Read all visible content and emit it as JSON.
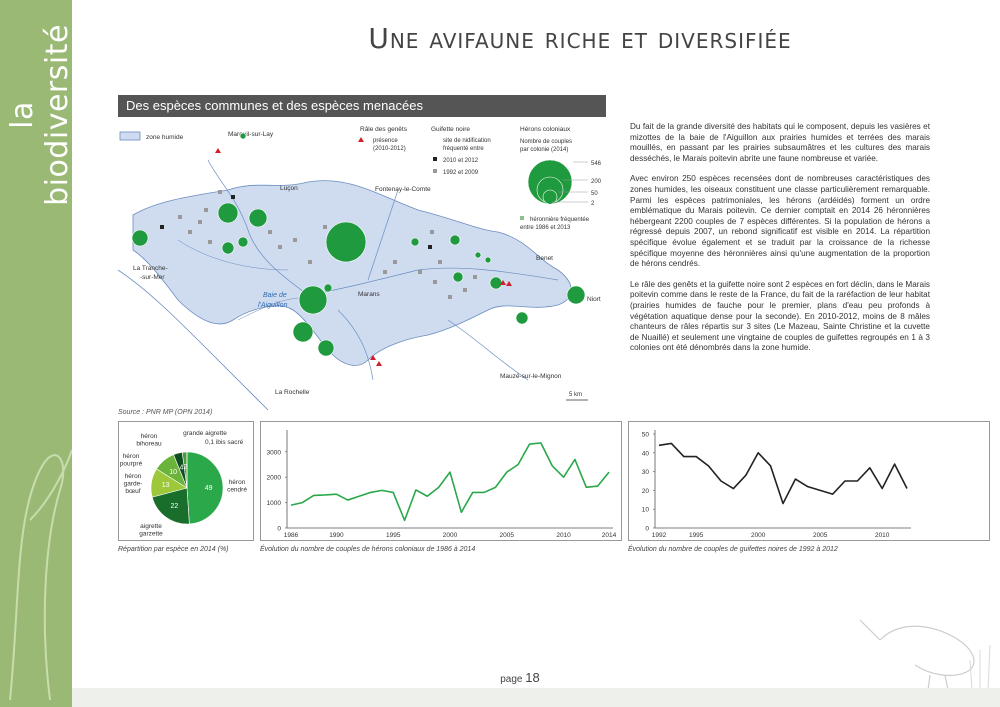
{
  "side_label": "la biodiversité",
  "title": "Une avifaune riche et diversifiée",
  "section_title": "Des espèces communes et des espèces menacées",
  "map": {
    "legend_zone": "zone humide",
    "legend_genets_title": "Râle des genêts",
    "legend_genets_item": "présence",
    "legend_genets_years": "(2010-2012)",
    "legend_guif_title": "Guifette noire",
    "legend_guif_item1": "site de nidification",
    "legend_guif_item2": "fréquenté entre",
    "legend_guif_2010": "2010 et 2012",
    "legend_guif_1992": "1992 et 2009",
    "legend_herons_title": "Hérons coloniaux",
    "legend_herons_sub1": "Nombre de couples",
    "legend_herons_sub2": "par colonie (2014)",
    "legend_scale": [
      "546",
      "200",
      "50",
      "2"
    ],
    "legend_heronniere1": "héronnière fréquentée",
    "legend_heronniere2": "entre 1986 et 2013",
    "places": {
      "mareuil": "Mareuil-sur-Lay",
      "lucon": "Luçon",
      "fontenay": "Fontenay-le-Comte",
      "tranche1": "La Tranche-",
      "tranche2": "-sur-Mer",
      "baie1": "Baie de",
      "baie2": "l'Aiguillon",
      "marans": "Marans",
      "benet": "Benet",
      "niort": "Niort",
      "mauze": "Mauzé-sur-le-Mignon",
      "rochelle": "La Rochelle"
    },
    "scale_bar": "5 km"
  },
  "source": "Source : PNR MP (OPN 2014)",
  "body": [
    "Du fait de la grande diversité des habitats qui le composent, depuis les vasières et mizottes de la baie de l'Aiguillon aux prairies humides et terrées des marais mouillés, en passant par les prairies subsaumâtres et les cultures des marais desséchés, le Marais poitevin abrite une faune nombreuse et variée.",
    "Avec environ 250 espèces recensées dont de nombreuses caractéristiques des zones humides, les oiseaux constituent une classe particulièrement remarquable. Parmi les espèces patrimoniales, les hérons (ardéidés) forment un ordre emblématique du Marais poitevin. Ce dernier comptait en 2014 26 héronnières hébergeant 2200 couples de 7 espèces différentes. Si la population de hérons a régressé depuis 2007, un rebond significatif est visible en 2014. La répartition spécifique évolue également et se traduit par la croissance de la richesse spécifique moyenne des héronnières ainsi qu'une augmentation de la proportion de hérons cendrés.",
    "Le râle des genêts et la guifette noire sont 2 espèces en fort déclin, dans le Marais poitevin comme dans le reste de la France, du fait de la raréfaction de leur habitat (prairies humides de fauche pour le premier, plans d'eau peu profonds à végétation aquatique dense pour la seconde). En 2010-2012, moins de 8 mâles chanteurs de râles répartis sur 3 sites (Le Mazeau, Sainte Christine et la cuvette de Nuaillé) et seulement une vingtaine de couples de guifettes regroupés en 1 à 3 colonies ont été dénombrés dans la zone humide."
  ],
  "captions": {
    "pie": "Répartition par espèce en 2014 (%)",
    "herons": "Évolution du nombre de couples de hérons coloniaux de 1986 à 2014",
    "guifettes": "Évolution du nombre de couples  de guifettes noires de 1992 à 2012"
  },
  "page_label": "page",
  "page_number": "18",
  "colors": {
    "band": "#9ab974",
    "green_dark": "#1a7a2e",
    "green": "#2aa84a",
    "marsh": "#cfdcef",
    "header": "#555555"
  },
  "chart_data": [
    {
      "type": "pie",
      "title": "Répartition par espèce en 2014 (%)",
      "labels": [
        "héron cendré",
        "aigrette garzette",
        "héron garde-bœuf",
        "héron pourpré",
        "héron bihoreau",
        "grande aigrette",
        "ibis sacré"
      ],
      "label_lines": [
        [
          "héron",
          "cendré"
        ],
        [
          "aigrette",
          "garzette"
        ],
        [
          "héron",
          "garde-",
          "bœuf"
        ],
        [
          "héron",
          "pourpré"
        ],
        [
          "héron",
          "bihoreau"
        ],
        [
          "grande aigrette"
        ],
        [
          "0,1 ibis sacré"
        ]
      ],
      "values": [
        49,
        22,
        13,
        10,
        4,
        2,
        0.1
      ],
      "value_labels": [
        "49",
        "22",
        "13",
        "10",
        "4",
        "2",
        ""
      ],
      "colors": [
        "#2aa84a",
        "#1a6e2c",
        "#9cc83a",
        "#6ab43c",
        "#0f4f1f",
        "#4d9a3a",
        "#aaaaaa"
      ]
    },
    {
      "type": "line",
      "title": "Évolution du nombre de couples de hérons coloniaux de 1986 à 2014",
      "x": [
        1986,
        1987,
        1988,
        1989,
        1990,
        1991,
        1992,
        1993,
        1994,
        1995,
        1996,
        1997,
        1998,
        1999,
        2000,
        2001,
        2002,
        2003,
        2004,
        2005,
        2006,
        2007,
        2008,
        2009,
        2010,
        2011,
        2012,
        2013,
        2014
      ],
      "values": [
        900,
        1000,
        1280,
        1300,
        1330,
        1100,
        1250,
        1400,
        1480,
        1400,
        300,
        1500,
        1250,
        1600,
        2200,
        620,
        1400,
        1400,
        1600,
        2200,
        2500,
        3300,
        3350,
        2450,
        2000,
        2700,
        1600,
        1650,
        2200
      ],
      "xticks": [
        1986,
        1990,
        1995,
        2000,
        2005,
        2010,
        2014
      ],
      "yticks": [
        0,
        1000,
        2000,
        3000
      ],
      "ylim": [
        0,
        3700
      ],
      "color": "#2aa84a"
    },
    {
      "type": "line",
      "title": "Évolution du nombre de couples  de guifettes noires de 1992 à 2012",
      "x": [
        1992,
        1993,
        1994,
        1995,
        1996,
        1997,
        1998,
        1999,
        2000,
        2001,
        2002,
        2003,
        2004,
        2005,
        2006,
        2007,
        2008,
        2009,
        2010,
        2011,
        2012
      ],
      "values": [
        44,
        45,
        38,
        38,
        33,
        25,
        21,
        28,
        40,
        33,
        13,
        26,
        22,
        20,
        18,
        25,
        25,
        32,
        21,
        34,
        21
      ],
      "xticks": [
        1992,
        1995,
        2000,
        2005,
        2010
      ],
      "yticks": [
        0,
        10,
        20,
        30,
        40,
        50
      ],
      "ylim": [
        0,
        50
      ],
      "color": "#222222"
    }
  ]
}
